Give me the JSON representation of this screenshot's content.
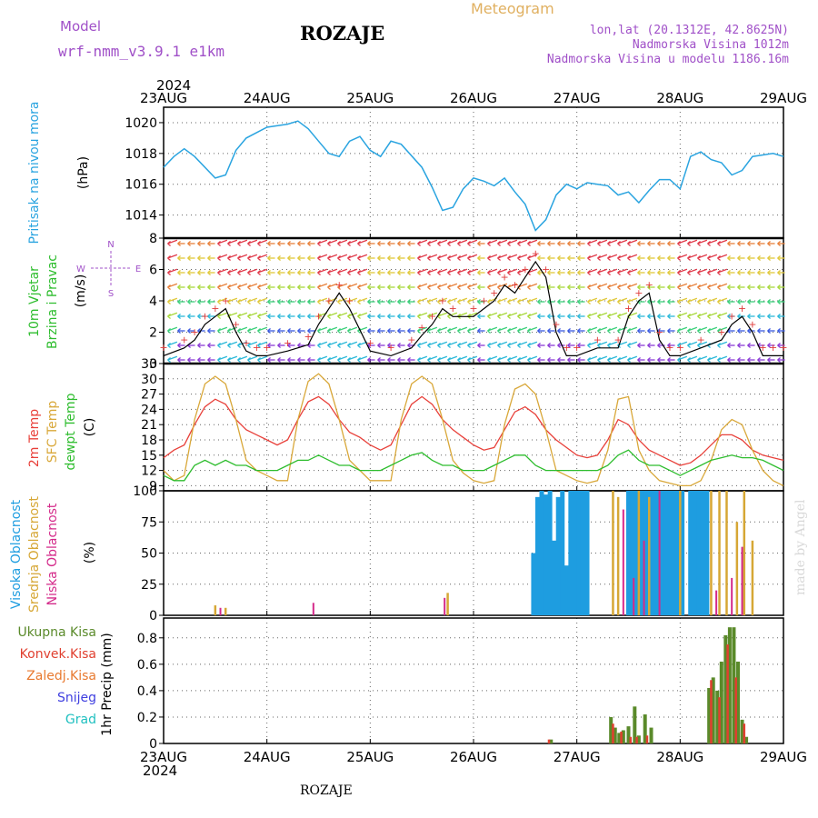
{
  "header": {
    "model_label": "Model",
    "model_name": "wrf-nmm_v3.9.1 e1km",
    "station": "ROZAJE",
    "product": "Meteogram",
    "lonlat": "lon,lat (20.1312E, 42.8625N)",
    "elevation": "Nadmorska Visina 1012m",
    "model_elevation": "Nadmorska Visina u modelu 1186.16m",
    "year_top": "2024",
    "year_bottom": "2024",
    "footer_station": "ROZAJE",
    "credit": "made by Angel"
  },
  "colors": {
    "pressure": "#2aa4e0",
    "temp2m": "#e8403a",
    "sfc_temp": "#d9a83a",
    "dewpt": "#2ebd2e",
    "high_cloud": "#1e9de0",
    "mid_cloud": "#d6a735",
    "low_cloud": "#d42a8a",
    "total_precip": "#5a8a2a",
    "conv_precip": "#e04030",
    "frozen_precip": "#e87a30",
    "snow": "#4040e0",
    "hail": "#20c0c0",
    "grid": "#666666"
  },
  "chart_data": [
    {
      "type": "line",
      "panel": "pressure",
      "ylabel_lines": [
        "Pritisak na nivou mora"
      ],
      "unit": "(hPa)",
      "ylim": [
        1012.5,
        1021
      ],
      "yticks": [
        1014,
        1016,
        1018,
        1020
      ],
      "x_days": [
        "23AUG",
        "24AUG",
        "25AUG",
        "26AUG",
        "27AUG",
        "28AUG",
        "29AUG"
      ],
      "x": [
        0,
        0.1,
        0.2,
        0.3,
        0.5,
        0.6,
        0.7,
        0.8,
        1.0,
        1.2,
        1.3,
        1.4,
        1.5,
        1.6,
        1.7,
        1.8,
        1.9,
        2.0,
        2.1,
        2.2,
        2.3,
        2.5,
        2.6,
        2.7,
        2.8,
        2.9,
        3.0,
        3.1,
        3.2,
        3.3,
        3.4,
        3.5,
        3.6,
        3.7,
        3.8,
        3.9,
        4.0,
        4.1,
        4.2,
        4.3,
        4.4,
        4.5,
        4.6,
        4.7,
        4.8,
        4.9,
        5.0,
        5.1,
        5.2,
        5.3,
        5.4,
        5.5,
        5.6,
        5.7,
        5.8,
        5.9,
        6.0
      ],
      "y": [
        1017.1,
        1017.8,
        1018.3,
        1017.8,
        1016.4,
        1016.6,
        1018.2,
        1019.0,
        1019.7,
        1019.9,
        1020.1,
        1019.6,
        1018.8,
        1018.0,
        1017.8,
        1018.8,
        1019.1,
        1018.2,
        1017.8,
        1018.8,
        1018.6,
        1017.1,
        1015.8,
        1014.3,
        1014.5,
        1015.7,
        1016.4,
        1016.2,
        1015.9,
        1016.4,
        1015.5,
        1014.7,
        1013.0,
        1013.7,
        1015.3,
        1016.0,
        1015.7,
        1016.1,
        1016.0,
        1015.9,
        1015.3,
        1015.5,
        1014.8,
        1015.6,
        1016.3,
        1016.3,
        1015.7,
        1017.8,
        1018.1,
        1017.6,
        1017.4,
        1016.6,
        1016.9,
        1017.8,
        1017.9,
        1018.0,
        1017.8
      ]
    },
    {
      "type": "line",
      "panel": "wind",
      "ylabel_lines": [
        "10m Vjetar",
        "Brzina i Pravac"
      ],
      "unit": "(m/s)",
      "compass": [
        "N",
        "E",
        "S",
        "W"
      ],
      "ylim": [
        0,
        8
      ],
      "yticks": [
        0,
        2,
        4,
        6,
        8
      ],
      "x": [
        0,
        0.2,
        0.3,
        0.4,
        0.5,
        0.6,
        0.7,
        0.8,
        0.9,
        1.0,
        1.2,
        1.4,
        1.5,
        1.6,
        1.7,
        1.8,
        2.0,
        2.2,
        2.4,
        2.5,
        2.6,
        2.7,
        2.8,
        3.0,
        3.1,
        3.2,
        3.3,
        3.4,
        3.5,
        3.6,
        3.7,
        3.8,
        3.9,
        4.0,
        4.2,
        4.4,
        4.5,
        4.6,
        4.7,
        4.8,
        4.9,
        5.0,
        5.2,
        5.4,
        5.5,
        5.6,
        5.7,
        5.8,
        5.9,
        6.0
      ],
      "y": [
        0.5,
        1.0,
        1.5,
        2.5,
        3.0,
        3.5,
        2.0,
        0.8,
        0.5,
        0.5,
        0.8,
        1.2,
        2.5,
        3.5,
        4.5,
        3.5,
        0.8,
        0.5,
        1.0,
        1.8,
        2.5,
        3.5,
        3.0,
        3.0,
        3.5,
        4.0,
        5.0,
        4.5,
        5.5,
        6.5,
        5.5,
        2.0,
        0.5,
        0.5,
        1.0,
        1.0,
        3.0,
        4.0,
        4.5,
        1.5,
        0.5,
        0.5,
        1.0,
        1.5,
        2.5,
        3.0,
        2.0,
        0.5,
        0.5,
        0.5
      ]
    },
    {
      "type": "line",
      "panel": "temperature",
      "ylabel_lines": [
        "2m Temp",
        "SFC Temp",
        "dewpt Temp"
      ],
      "unit": "(C)",
      "ylim": [
        8,
        33
      ],
      "yticks": [
        9,
        12,
        15,
        18,
        21,
        24,
        27,
        30,
        33
      ],
      "x": [
        0,
        0.1,
        0.2,
        0.3,
        0.4,
        0.5,
        0.6,
        0.7,
        0.8,
        0.9,
        1.0,
        1.1,
        1.2,
        1.3,
        1.4,
        1.5,
        1.6,
        1.7,
        1.8,
        1.9,
        2.0,
        2.1,
        2.2,
        2.3,
        2.4,
        2.5,
        2.6,
        2.7,
        2.8,
        2.9,
        3.0,
        3.1,
        3.2,
        3.3,
        3.4,
        3.5,
        3.6,
        3.7,
        3.8,
        3.9,
        4.0,
        4.1,
        4.2,
        4.3,
        4.4,
        4.5,
        4.6,
        4.7,
        4.8,
        4.9,
        5.0,
        5.1,
        5.2,
        5.3,
        5.4,
        5.5,
        5.6,
        5.7,
        5.8,
        5.9,
        6.0
      ],
      "series": [
        {
          "name": "2m Temp",
          "values": [
            14.5,
            16,
            17,
            21,
            24.5,
            26,
            25,
            22,
            20,
            19,
            18,
            17,
            18,
            22,
            25.5,
            26.5,
            25,
            22,
            19.5,
            18.5,
            17,
            16,
            17,
            21,
            25,
            26.5,
            25,
            22,
            20,
            18.5,
            17,
            16,
            16.5,
            20,
            23.5,
            24.5,
            23,
            20,
            18,
            16.5,
            15,
            14.5,
            15,
            18,
            22,
            21,
            18,
            16,
            15,
            14,
            13,
            13.5,
            15,
            17,
            19,
            19,
            18,
            16,
            15,
            14.5,
            14
          ]
        },
        {
          "name": "SFC Temp",
          "values": [
            12,
            10,
            11,
            22,
            29,
            30.5,
            29,
            22,
            14,
            12,
            11,
            10,
            10,
            22,
            29.5,
            31,
            29,
            22,
            14,
            12,
            10,
            10,
            10,
            22,
            29,
            30.5,
            29,
            22,
            14,
            11.5,
            10,
            9.5,
            10,
            21,
            28,
            29,
            27,
            20,
            12,
            11,
            10,
            9.5,
            10,
            16,
            26,
            26.5,
            16,
            12,
            10,
            9.5,
            9,
            9,
            10,
            14,
            20,
            22,
            21,
            16,
            12,
            10,
            9
          ]
        },
        {
          "name": "dewpt Temp",
          "values": [
            11,
            10,
            10,
            13,
            14,
            13,
            14,
            13,
            13,
            12,
            12,
            12,
            13,
            14,
            14,
            15,
            14,
            13,
            13,
            12,
            12,
            12,
            13,
            14,
            15,
            15.5,
            14,
            13,
            13,
            12,
            12,
            12,
            13,
            14,
            15,
            15,
            13,
            12,
            12,
            12,
            12,
            12,
            12,
            13,
            15,
            16,
            14,
            13,
            13,
            12,
            11,
            12,
            13,
            14,
            14.5,
            15,
            14.5,
            14.5,
            14,
            13,
            12
          ]
        }
      ]
    },
    {
      "type": "bar",
      "panel": "cloud",
      "ylabel_lines": [
        "Visoka Oblacnost",
        "Srednja Oblacnost",
        "Niska Oblacnost"
      ],
      "unit": "(%)",
      "ylim": [
        0,
        100
      ],
      "yticks": [
        0,
        25,
        50,
        75,
        100
      ],
      "series": [
        {
          "name": "Visoka Oblacnost",
          "x": [
            3.58,
            3.62,
            3.66,
            3.7,
            3.74,
            3.78,
            3.82,
            3.86,
            3.9,
            3.94,
            3.98,
            4.02,
            4.06,
            4.1,
            4.5,
            4.54,
            4.58,
            4.62,
            4.66,
            4.7,
            4.74,
            4.78,
            4.82,
            4.86,
            4.9,
            4.94,
            4.98,
            5.02,
            5.1,
            5.14,
            5.18,
            5.22,
            5.26
          ],
          "values": [
            50,
            95,
            100,
            97,
            100,
            60,
            95,
            100,
            40,
            100,
            100,
            100,
            100,
            100,
            100,
            100,
            100,
            100,
            100,
            100,
            100,
            100,
            100,
            100,
            100,
            100,
            100,
            100,
            100,
            100,
            100,
            100,
            100
          ]
        },
        {
          "name": "Srednja Oblacnost",
          "x": [
            0.5,
            0.6,
            2.75,
            4.35,
            4.4,
            4.6,
            4.7,
            5.0,
            5.3,
            5.38,
            5.45,
            5.55,
            5.62,
            5.7
          ],
          "values": [
            8,
            6,
            18,
            100,
            95,
            100,
            95,
            100,
            100,
            100,
            100,
            75,
            100,
            60
          ]
        },
        {
          "name": "Niska Oblacnost",
          "x": [
            0.55,
            1.45,
            2.72,
            4.45,
            4.55,
            4.65,
            4.8,
            5.35,
            5.5,
            5.6
          ],
          "values": [
            6,
            10,
            14,
            85,
            30,
            60,
            100,
            20,
            30,
            55
          ]
        }
      ]
    },
    {
      "type": "bar",
      "panel": "precip",
      "ylabel_lines": [
        "Ukupna Kisa",
        "Konvek.Kisa",
        "Zaledj.Kisa",
        "Snijeg",
        "Grad"
      ],
      "unit": "1hr Precip (mm)",
      "ylim": [
        0,
        0.95
      ],
      "yticks": [
        0,
        0.2,
        0.4,
        0.6,
        0.8
      ],
      "series": [
        {
          "name": "Ukupna Kisa",
          "x": [
            3.75,
            4.33,
            4.37,
            4.41,
            4.45,
            4.5,
            4.56,
            4.6,
            4.66,
            4.72,
            5.28,
            5.32,
            5.36,
            5.4,
            5.44,
            5.48,
            5.52,
            5.56,
            5.6,
            5.64
          ],
          "values": [
            0.03,
            0.2,
            0.12,
            0.08,
            0.1,
            0.13,
            0.28,
            0.06,
            0.22,
            0.12,
            0.42,
            0.5,
            0.4,
            0.62,
            0.82,
            0.88,
            0.88,
            0.62,
            0.18,
            0.05
          ]
        },
        {
          "name": "Konvek.Kisa",
          "x": [
            3.73,
            4.35,
            4.43,
            4.52,
            4.58,
            4.68,
            5.3,
            5.38,
            5.46,
            5.54,
            5.62
          ],
          "values": [
            0.03,
            0.15,
            0.09,
            0.05,
            0.05,
            0.06,
            0.48,
            0.35,
            0.75,
            0.5,
            0.15
          ]
        }
      ]
    }
  ]
}
